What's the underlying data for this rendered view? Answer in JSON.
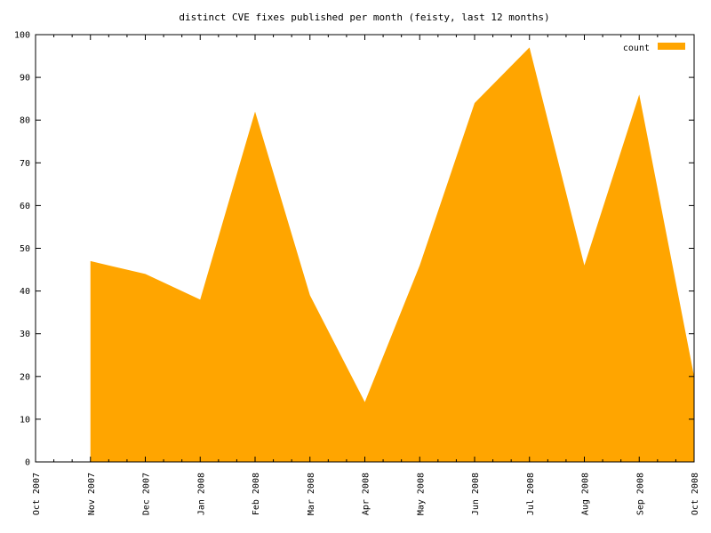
{
  "chart_data": {
    "type": "area",
    "title": "distinct CVE fixes published per month (feisty, last 12 months)",
    "xlabel": "",
    "ylabel": "",
    "x": [
      "Oct 2007",
      "Nov 2007",
      "Dec 2007",
      "Jan 2008",
      "Feb 2008",
      "Mar 2008",
      "Apr 2008",
      "May 2008",
      "Jun 2008",
      "Jul 2008",
      "Aug 2008",
      "Sep 2008",
      "Oct 2008"
    ],
    "series": [
      {
        "name": "count",
        "color": "#ffa500",
        "values": [
          null,
          47,
          44,
          38,
          82,
          39,
          14,
          46,
          84,
          97,
          46,
          86,
          20
        ]
      }
    ],
    "ylim": [
      0,
      100
    ],
    "yticks": [
      0,
      10,
      20,
      30,
      40,
      50,
      60,
      70,
      80,
      90,
      100
    ],
    "legend": "top-right",
    "grid": false
  }
}
